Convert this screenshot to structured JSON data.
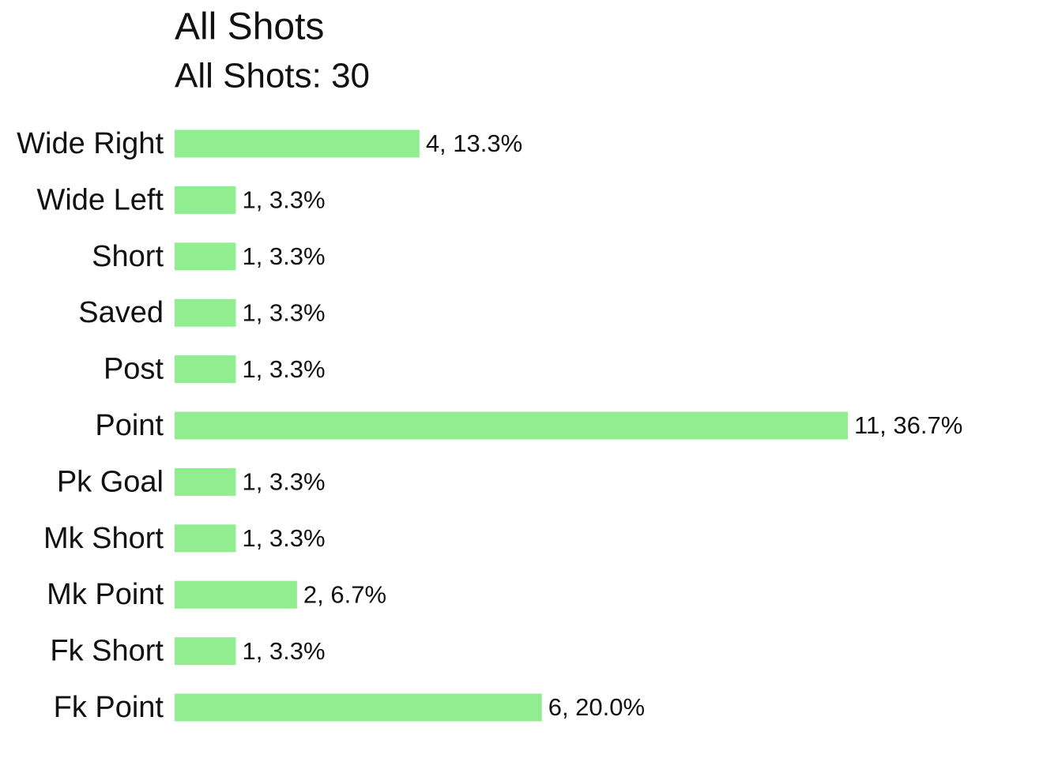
{
  "chart_data": {
    "type": "bar",
    "orientation": "horizontal",
    "title": "All Shots",
    "subtitle": "All Shots: 30",
    "categories": [
      "Wide Right",
      "Wide Left",
      "Short",
      "Saved",
      "Post",
      "Point",
      "Pk Goal",
      "Mk Short",
      "Mk Point",
      "Fk Short",
      "Fk Point"
    ],
    "values": [
      4,
      1,
      1,
      1,
      1,
      11,
      1,
      1,
      2,
      1,
      6
    ],
    "value_labels": [
      "4, 13.3%",
      "1, 3.3%",
      "1, 3.3%",
      "1, 3.3%",
      "1, 3.3%",
      "11, 36.7%",
      "1, 3.3%",
      "1, 3.3%",
      "2, 6.7%",
      "1, 3.3%",
      "6, 20.0%"
    ],
    "color": "#90ee90",
    "xlim": [
      0,
      11
    ]
  }
}
